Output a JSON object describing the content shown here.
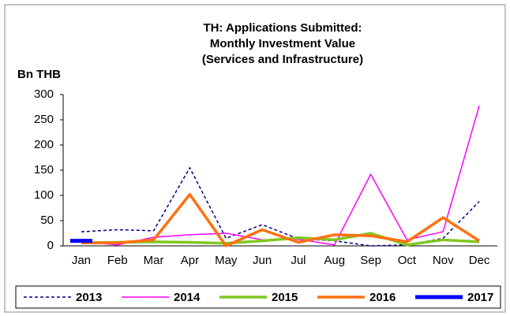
{
  "chart_data": {
    "type": "line",
    "title": [
      "TH: Applications Submitted:",
      "Monthly Investment Value",
      "(Services and Infrastructure)"
    ],
    "y_label": "Bn THB",
    "categories": [
      "Jan",
      "Feb",
      "Mar",
      "Apr",
      "May",
      "Jun",
      "Jul",
      "Aug",
      "Sep",
      "Oct",
      "Nov",
      "Dec"
    ],
    "ylim": [
      0,
      300
    ],
    "yticks": [
      0,
      50,
      100,
      150,
      200,
      250,
      300
    ],
    "legend": "bottom",
    "series": [
      {
        "name": "2013",
        "color": "#000080",
        "dash": true,
        "width": 1.5,
        "values": [
          28,
          32,
          30,
          155,
          15,
          42,
          14,
          10,
          0,
          2,
          15,
          88
        ]
      },
      {
        "name": "2014",
        "color": "#ff00ff",
        "dash": false,
        "width": 1.5,
        "values": [
          8,
          2,
          17,
          22,
          25,
          12,
          13,
          2,
          142,
          12,
          28,
          278
        ]
      },
      {
        "name": "2015",
        "color": "#80c820",
        "dash": false,
        "width": 3.5,
        "values": [
          6,
          7,
          8,
          7,
          5,
          10,
          16,
          12,
          25,
          2,
          12,
          8
        ]
      },
      {
        "name": "2016",
        "color": "#ff7010",
        "dash": false,
        "width": 3.5,
        "values": [
          6,
          6,
          12,
          102,
          0,
          32,
          7,
          22,
          20,
          8,
          56,
          10
        ]
      },
      {
        "name": "2017",
        "color": "#0000ff",
        "dash": false,
        "width": 5,
        "values": [
          10,
          null,
          null,
          null,
          null,
          null,
          null,
          null,
          null,
          null,
          null,
          null
        ]
      }
    ]
  }
}
